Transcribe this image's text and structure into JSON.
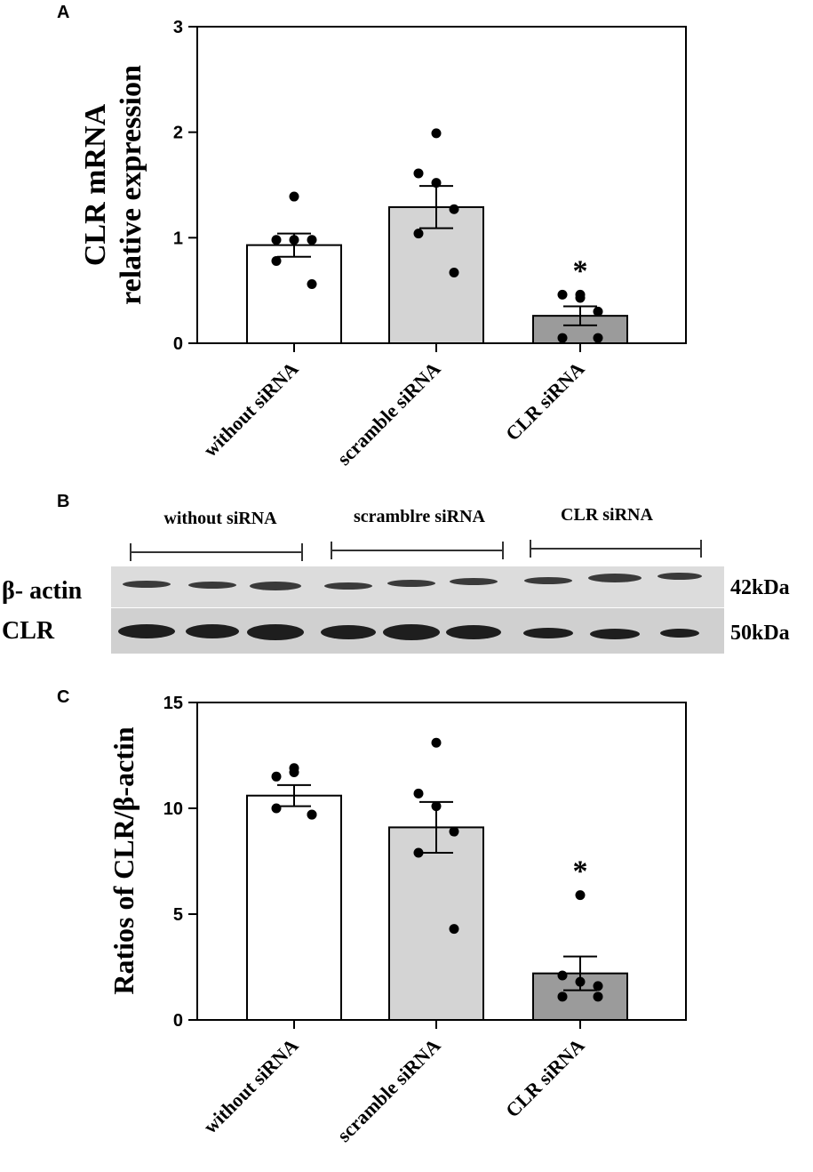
{
  "chart_data": [
    {
      "type": "bar",
      "panel": "A",
      "y_label": [
        "CLR mRNA",
        "relative expression"
      ],
      "categories": [
        "without siRNA",
        "scramble siRNA",
        "CLR siRNA"
      ],
      "values": [
        0.93,
        1.29,
        0.26
      ],
      "errors": [
        0.11,
        0.2,
        0.09
      ],
      "points": [
        [
          1.39,
          0.98,
          0.98,
          0.98,
          0.78,
          0.56
        ],
        [
          1.99,
          1.61,
          1.52,
          1.27,
          1.04,
          0.67
        ],
        [
          0.46,
          0.46,
          0.43,
          0.3,
          0.05,
          0.05
        ]
      ],
      "annotations": [
        null,
        null,
        "*"
      ],
      "colors": [
        "#ffffff",
        "#d4d4d4",
        "#9b9b9b"
      ],
      "ylim": [
        0,
        3
      ],
      "yticks": [
        0,
        1,
        2,
        3
      ]
    },
    {
      "type": "bar",
      "panel": "C",
      "y_label": [
        "Ratios of CLR/β-actin"
      ],
      "categories": [
        "without siRNA",
        "scramble siRNA",
        "CLR siRNA"
      ],
      "values": [
        10.6,
        9.1,
        2.2
      ],
      "errors": [
        0.5,
        1.2,
        0.8
      ],
      "points": [
        [
          11.9,
          11.5,
          11.7,
          9.7,
          10.0,
          9.7
        ],
        [
          13.1,
          10.7,
          10.1,
          8.9,
          7.9,
          4.3
        ],
        [
          5.9,
          2.1,
          1.8,
          1.6,
          1.1,
          1.1
        ]
      ],
      "annotations": [
        null,
        null,
        "*"
      ],
      "colors": [
        "#ffffff",
        "#d4d4d4",
        "#9b9b9b"
      ],
      "ylim": [
        0,
        15
      ],
      "yticks": [
        0,
        5,
        10,
        15
      ]
    }
  ],
  "blot": {
    "panel": "B",
    "groups": [
      "without siRNA",
      "scramblre siRNA",
      "CLR siRNA"
    ],
    "rows": [
      {
        "label": "β- actin",
        "size": "42kDa"
      },
      {
        "label": "CLR",
        "size": "50kDa"
      }
    ]
  }
}
